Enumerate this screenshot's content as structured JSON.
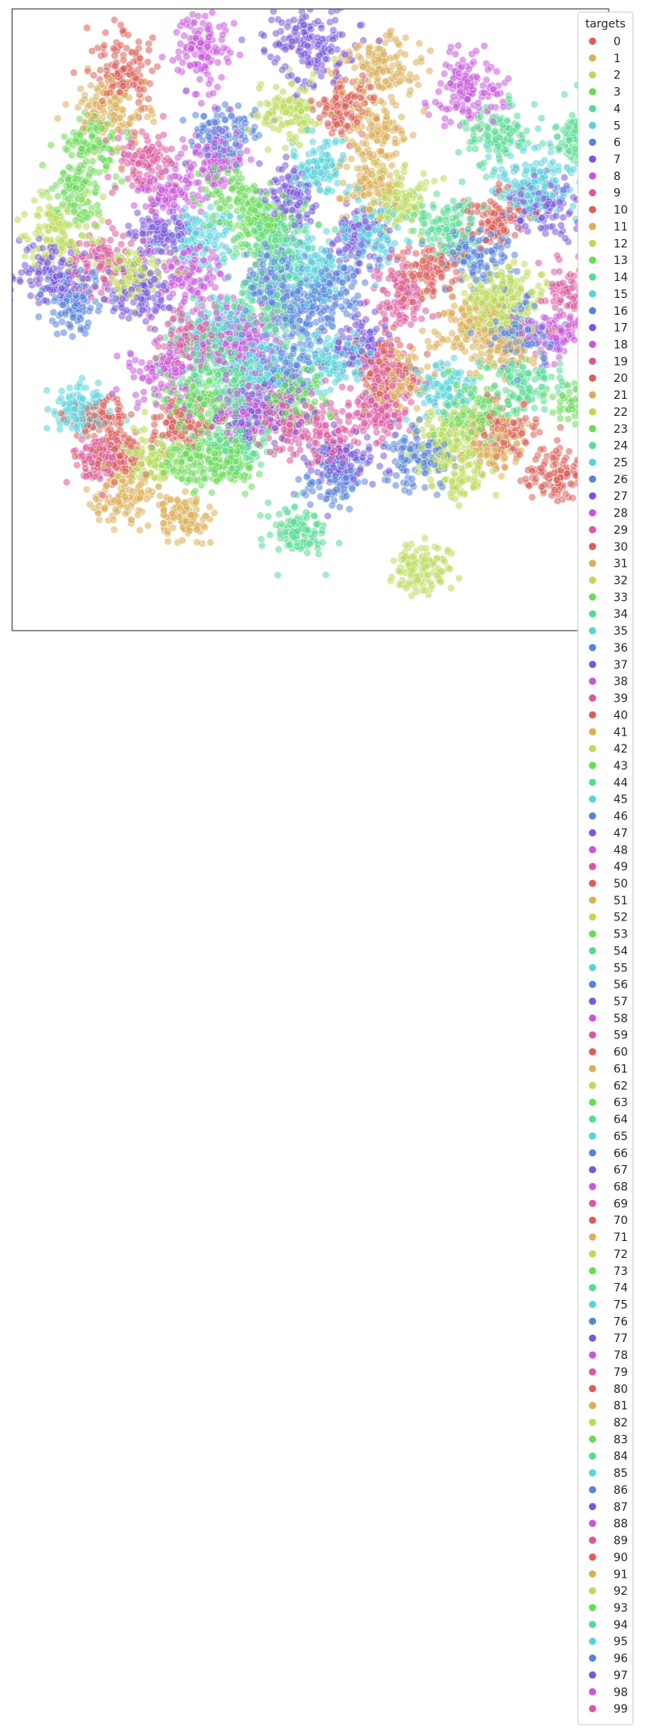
{
  "chart_data": {
    "type": "scatter",
    "title": "",
    "xlabel": "",
    "ylabel": "",
    "grid": false,
    "axes_ticks": false,
    "legend": {
      "title": "targets",
      "placement": "right, overflowing below plot"
    },
    "palette_rule": "husl, 10-hue cycle repeating every 10 classes",
    "palette": [
      "#db5f57",
      "#dbae57",
      "#b9db57",
      "#69db57",
      "#57db94",
      "#57d3db",
      "#5784db",
      "#7957db",
      "#c957db",
      "#db579e"
    ],
    "point_alpha": 0.55,
    "categories": [
      "0",
      "1",
      "2",
      "3",
      "4",
      "5",
      "6",
      "7",
      "8",
      "9",
      "10",
      "11",
      "12",
      "13",
      "14",
      "15",
      "16",
      "17",
      "18",
      "19",
      "20",
      "21",
      "22",
      "23",
      "24",
      "25",
      "26",
      "27",
      "28",
      "29",
      "30",
      "31",
      "32",
      "33",
      "34",
      "35",
      "36",
      "37",
      "38",
      "39",
      "40",
      "41",
      "42",
      "43",
      "44",
      "45",
      "46",
      "47",
      "48",
      "49",
      "50",
      "51",
      "52",
      "53",
      "54",
      "55",
      "56",
      "57",
      "58",
      "59",
      "60",
      "61",
      "62",
      "63",
      "64",
      "65",
      "66",
      "67",
      "68",
      "69",
      "70",
      "71",
      "72",
      "73",
      "74",
      "75",
      "76",
      "77",
      "78",
      "79",
      "80",
      "81",
      "82",
      "83",
      "84",
      "85",
      "86",
      "87",
      "88",
      "89",
      "90",
      "91",
      "92",
      "93",
      "94",
      "95",
      "96",
      "97",
      "98",
      "99"
    ],
    "xlim": [
      -100,
      100
    ],
    "ylim": [
      -100,
      100
    ],
    "clusters": [
      {
        "target": "0",
        "x": -62,
        "y": 80,
        "sx": 5,
        "sy": 6,
        "n": 120
      },
      {
        "target": "1",
        "x": -67,
        "y": 67,
        "sx": 6,
        "sy": 5,
        "n": 130
      },
      {
        "target": "2",
        "x": -6,
        "y": 67,
        "sx": 6,
        "sy": 5,
        "n": 120
      },
      {
        "target": "3",
        "x": -73,
        "y": 56,
        "sx": 5,
        "sy": 5,
        "n": 110
      },
      {
        "target": "4",
        "x": 45,
        "y": 30,
        "sx": 6,
        "sy": 5,
        "n": 110
      },
      {
        "target": "5",
        "x": 2,
        "y": 48,
        "sx": 5,
        "sy": 5,
        "n": 100
      },
      {
        "target": "6",
        "x": -30,
        "y": 60,
        "sx": 6,
        "sy": 5,
        "n": 120
      },
      {
        "target": "7",
        "x": 1,
        "y": 88,
        "sx": 8,
        "sy": 6,
        "n": 160
      },
      {
        "target": "8",
        "x": -36,
        "y": 87,
        "sx": 5,
        "sy": 6,
        "n": 120
      },
      {
        "target": "9",
        "x": -56,
        "y": 52,
        "sx": 5,
        "sy": 5,
        "n": 110
      },
      {
        "target": "10",
        "x": 12,
        "y": 68,
        "sx": 5,
        "sy": 5,
        "n": 110
      },
      {
        "target": "11",
        "x": 24,
        "y": 82,
        "sx": 6,
        "sy": 5,
        "n": 130
      },
      {
        "target": "12",
        "x": -84,
        "y": 28,
        "sx": 6,
        "sy": 6,
        "n": 120
      },
      {
        "target": "13",
        "x": -79,
        "y": 40,
        "sx": 4,
        "sy": 5,
        "n": 90
      },
      {
        "target": "14",
        "x": 63,
        "y": 60,
        "sx": 5,
        "sy": 5,
        "n": 110
      },
      {
        "target": "15",
        "x": 75,
        "y": 44,
        "sx": 7,
        "sy": 6,
        "n": 150
      },
      {
        "target": "16",
        "x": -79,
        "y": 6,
        "sx": 5,
        "sy": 5,
        "n": 110
      },
      {
        "target": "17",
        "x": -86,
        "y": 14,
        "sx": 6,
        "sy": 5,
        "n": 120
      },
      {
        "target": "18",
        "x": -47,
        "y": 41,
        "sx": 5,
        "sy": 4,
        "n": 100
      },
      {
        "target": "19",
        "x": -70,
        "y": 18,
        "sx": 5,
        "sy": 5,
        "n": 100
      },
      {
        "target": "20",
        "x": 40,
        "y": 16,
        "sx": 5,
        "sy": 5,
        "n": 110
      },
      {
        "target": "21",
        "x": 53,
        "y": -2,
        "sx": 6,
        "sy": 5,
        "n": 120
      },
      {
        "target": "22",
        "x": 68,
        "y": 7,
        "sx": 6,
        "sy": 5,
        "n": 110
      },
      {
        "target": "23",
        "x": -38,
        "y": -26,
        "sx": 6,
        "sy": 5,
        "n": 120
      },
      {
        "target": "24",
        "x": -10,
        "y": 26,
        "sx": 6,
        "sy": 5,
        "n": 120
      },
      {
        "target": "25",
        "x": 1,
        "y": 16,
        "sx": 6,
        "sy": 6,
        "n": 120
      },
      {
        "target": "26",
        "x": -12,
        "y": 14,
        "sx": 5,
        "sy": 5,
        "n": 110
      },
      {
        "target": "27",
        "x": -50,
        "y": 28,
        "sx": 5,
        "sy": 4,
        "n": 100
      },
      {
        "target": "28",
        "x": -20,
        "y": -28,
        "sx": 6,
        "sy": 5,
        "n": 120
      },
      {
        "target": "29",
        "x": 6,
        "y": -36,
        "sx": 5,
        "sy": 5,
        "n": 110
      },
      {
        "target": "30",
        "x": -65,
        "y": -44,
        "sx": 5,
        "sy": 5,
        "n": 110
      },
      {
        "target": "31",
        "x": -44,
        "y": -63,
        "sx": 5,
        "sy": 4,
        "n": 110
      },
      {
        "target": "32",
        "x": 36,
        "y": -80,
        "sx": 5,
        "sy": 4,
        "n": 110
      },
      {
        "target": "33",
        "x": -25,
        "y": 40,
        "sx": 6,
        "sy": 5,
        "n": 110
      },
      {
        "target": "34",
        "x": -5,
        "y": -68,
        "sx": 5,
        "sy": 4,
        "n": 110
      },
      {
        "target": "35",
        "x": -78,
        "y": -28,
        "sx": 5,
        "sy": 4,
        "n": 110
      },
      {
        "target": "36",
        "x": 70,
        "y": -5,
        "sx": 6,
        "sy": 5,
        "n": 110
      },
      {
        "target": "37",
        "x": -57,
        "y": 8,
        "sx": 5,
        "sy": 4,
        "n": 100
      },
      {
        "target": "38",
        "x": -49,
        "y": -18,
        "sx": 6,
        "sy": 5,
        "n": 110
      },
      {
        "target": "39",
        "x": -70,
        "y": -45,
        "sx": 5,
        "sy": 4,
        "n": 100
      },
      {
        "target": "40",
        "x": -70,
        "y": -32,
        "sx": 5,
        "sy": 4,
        "n": 100
      },
      {
        "target": "41",
        "x": 20,
        "y": 44,
        "sx": 5,
        "sy": 5,
        "n": 110
      },
      {
        "target": "42",
        "x": -60,
        "y": 15,
        "sx": 5,
        "sy": 4,
        "n": 100
      },
      {
        "target": "43",
        "x": -28,
        "y": -46,
        "sx": 5,
        "sy": 4,
        "n": 110
      },
      {
        "target": "44",
        "x": -14,
        "y": 4,
        "sx": 6,
        "sy": 6,
        "n": 120
      },
      {
        "target": "45",
        "x": -18,
        "y": -15,
        "sx": 6,
        "sy": 5,
        "n": 110
      },
      {
        "target": "46",
        "x": 36,
        "y": -44,
        "sx": 6,
        "sy": 5,
        "n": 120
      },
      {
        "target": "47",
        "x": 10,
        "y": -46,
        "sx": 6,
        "sy": 5,
        "n": 120
      },
      {
        "target": "48",
        "x": -28,
        "y": -6,
        "sx": 6,
        "sy": 5,
        "n": 110
      },
      {
        "target": "49",
        "x": -40,
        "y": -5,
        "sx": 6,
        "sy": 5,
        "n": 110
      },
      {
        "target": "50",
        "x": -44,
        "y": -34,
        "sx": 5,
        "sy": 4,
        "n": 100
      },
      {
        "target": "51",
        "x": -62,
        "y": -58,
        "sx": 5,
        "sy": 4,
        "n": 100
      },
      {
        "target": "52",
        "x": -55,
        "y": -46,
        "sx": 5,
        "sy": 4,
        "n": 100
      },
      {
        "target": "53",
        "x": -40,
        "y": -45,
        "sx": 5,
        "sy": 4,
        "n": 100
      },
      {
        "target": "54",
        "x": -35,
        "y": -10,
        "sx": 6,
        "sy": 6,
        "n": 120
      },
      {
        "target": "55",
        "x": 7,
        "y": -14,
        "sx": 6,
        "sy": 5,
        "n": 110
      },
      {
        "target": "56",
        "x": 8,
        "y": 10,
        "sx": 5,
        "sy": 5,
        "n": 110
      },
      {
        "target": "57",
        "x": 16,
        "y": -8,
        "sx": 5,
        "sy": 5,
        "n": 100
      },
      {
        "target": "58",
        "x": -40,
        "y": 15,
        "sx": 6,
        "sy": 5,
        "n": 110
      },
      {
        "target": "59",
        "x": -10,
        "y": -32,
        "sx": 5,
        "sy": 5,
        "n": 100
      },
      {
        "target": "60",
        "x": 25,
        "y": -16,
        "sx": 5,
        "sy": 5,
        "n": 100
      },
      {
        "target": "61",
        "x": 29,
        "y": -20,
        "sx": 5,
        "sy": 4,
        "n": 100
      },
      {
        "target": "62",
        "x": 50,
        "y": -48,
        "sx": 6,
        "sy": 5,
        "n": 110
      },
      {
        "target": "63",
        "x": -16,
        "y": 30,
        "sx": 5,
        "sy": 5,
        "n": 100
      },
      {
        "target": "64",
        "x": -26,
        "y": -20,
        "sx": 6,
        "sy": 5,
        "n": 110
      },
      {
        "target": "65",
        "x": -30,
        "y": -1,
        "sx": 6,
        "sy": 5,
        "n": 110
      },
      {
        "target": "66",
        "x": -4,
        "y": 2,
        "sx": 6,
        "sy": 5,
        "n": 110
      },
      {
        "target": "67",
        "x": -16,
        "y": -30,
        "sx": 6,
        "sy": 5,
        "n": 110
      },
      {
        "target": "68",
        "x": -20,
        "y": -6,
        "sx": 5,
        "sy": 5,
        "n": 100
      },
      {
        "target": "69",
        "x": 30,
        "y": 8,
        "sx": 5,
        "sy": 5,
        "n": 100
      },
      {
        "target": "70",
        "x": 62,
        "y": 32,
        "sx": 5,
        "sy": 5,
        "n": 100
      },
      {
        "target": "71",
        "x": 64,
        "y": -8,
        "sx": 5,
        "sy": 4,
        "n": 100
      },
      {
        "target": "72",
        "x": 60,
        "y": 4,
        "sx": 5,
        "sy": 5,
        "n": 100
      },
      {
        "target": "73",
        "x": 55,
        "y": -30,
        "sx": 6,
        "sy": 5,
        "n": 110
      },
      {
        "target": "74",
        "x": 72,
        "y": -20,
        "sx": 6,
        "sy": 5,
        "n": 110
      },
      {
        "target": "75",
        "x": 44,
        "y": -22,
        "sx": 5,
        "sy": 5,
        "n": 100
      },
      {
        "target": "76",
        "x": 55,
        "y": 20,
        "sx": 6,
        "sy": 5,
        "n": 110
      },
      {
        "target": "77",
        "x": 78,
        "y": 36,
        "sx": 6,
        "sy": 5,
        "n": 110
      },
      {
        "target": "78",
        "x": 82,
        "y": -4,
        "sx": 5,
        "sy": 4,
        "n": 100
      },
      {
        "target": "79",
        "x": 88,
        "y": 8,
        "sx": 5,
        "sy": 5,
        "n": 100
      },
      {
        "target": "80",
        "x": 82,
        "y": -48,
        "sx": 5,
        "sy": 5,
        "n": 110
      },
      {
        "target": "81",
        "x": 60,
        "y": -40,
        "sx": 5,
        "sy": 5,
        "n": 100
      },
      {
        "target": "82",
        "x": 45,
        "y": -38,
        "sx": 5,
        "sy": 5,
        "n": 100
      },
      {
        "target": "83",
        "x": 91,
        "y": -26,
        "sx": 5,
        "sy": 4,
        "n": 100
      },
      {
        "target": "84",
        "x": 90,
        "y": 58,
        "sx": 5,
        "sy": 5,
        "n": 100
      },
      {
        "target": "85",
        "x": 20,
        "y": 28,
        "sx": 5,
        "sy": 5,
        "n": 100
      },
      {
        "target": "86",
        "x": 8,
        "y": -52,
        "sx": 5,
        "sy": 4,
        "n": 100
      },
      {
        "target": "87",
        "x": 16,
        "y": 26,
        "sx": 5,
        "sy": 5,
        "n": 100
      },
      {
        "target": "88",
        "x": 53,
        "y": 74,
        "sx": 6,
        "sy": 6,
        "n": 130
      },
      {
        "target": "89",
        "x": 24,
        "y": -30,
        "sx": 5,
        "sy": 4,
        "n": 100
      },
      {
        "target": "90",
        "x": 66,
        "y": -36,
        "sx": 5,
        "sy": 5,
        "n": 100
      },
      {
        "target": "91",
        "x": 24,
        "y": 60,
        "sx": 5,
        "sy": 5,
        "n": 100
      },
      {
        "target": "92",
        "x": 30,
        "y": 38,
        "sx": 5,
        "sy": 5,
        "n": 100
      },
      {
        "target": "93",
        "x": -6,
        "y": -24,
        "sx": 5,
        "sy": 5,
        "n": 100
      },
      {
        "target": "94",
        "x": -24,
        "y": -40,
        "sx": 5,
        "sy": 4,
        "n": 100
      },
      {
        "target": "95",
        "x": -36,
        "y": 26,
        "sx": 5,
        "sy": 5,
        "n": 100
      },
      {
        "target": "96",
        "x": -8,
        "y": -16,
        "sx": 5,
        "sy": 5,
        "n": 100
      },
      {
        "target": "97",
        "x": -6,
        "y": 40,
        "sx": 5,
        "sy": 5,
        "n": 100
      },
      {
        "target": "98",
        "x": -32,
        "y": 52,
        "sx": 5,
        "sy": 5,
        "n": 100
      },
      {
        "target": "99",
        "x": 26,
        "y": -20,
        "sx": 5,
        "sy": 5,
        "n": 100
      }
    ]
  }
}
